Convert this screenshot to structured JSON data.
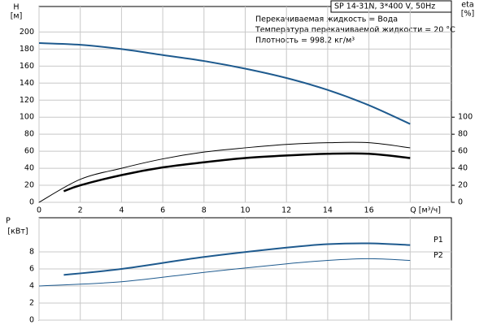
{
  "chart_data": [
    {
      "type": "line",
      "ylabel": "H",
      "yunit": "[м]",
      "y2label": "eta",
      "y2unit": "[%]",
      "model": "SP 14-31N, 3*400 V, 50Hz",
      "notes": [
        "Перекачиваемая жидкость = Вода",
        "Температура перекачиваемой жидкости = 20 °C",
        "Плотность = 998.2 кг/м³"
      ],
      "xlim": [
        0,
        20
      ],
      "xticks": [
        0,
        2,
        4,
        6,
        8,
        10,
        12,
        14,
        16,
        {
          "value": 18,
          "label": "Q [м³/ч]"
        }
      ],
      "ylim": [
        0,
        230
      ],
      "yticks": [
        0,
        20,
        40,
        60,
        80,
        100,
        120,
        140,
        160,
        180,
        200
      ],
      "y2lim": [
        0,
        230
      ],
      "y2ticks": [
        0,
        20,
        40,
        60,
        80,
        100
      ],
      "grid": true,
      "series": [
        {
          "color": "#1e5a8e",
          "width": 2,
          "x": [
            0,
            2,
            4,
            6,
            8,
            10,
            12,
            14,
            16,
            18
          ],
          "values": [
            187,
            185,
            180,
            173,
            166,
            157,
            146,
            132,
            114,
            92
          ]
        },
        {
          "color": "#000000",
          "width": 1,
          "axis": "y2",
          "x": [
            0,
            2,
            4,
            6,
            8,
            10,
            12,
            14,
            16,
            18
          ],
          "values": [
            0,
            27,
            40,
            51,
            59,
            64,
            68,
            70,
            70,
            64
          ]
        },
        {
          "color": "#000000",
          "width": 2.5,
          "axis": "y2",
          "x": [
            1.2,
            2,
            4,
            6,
            8,
            10,
            12,
            14,
            16,
            18
          ],
          "values": [
            13,
            20,
            32,
            41,
            47,
            52,
            55,
            57,
            57,
            52
          ]
        }
      ]
    },
    {
      "type": "line",
      "ylabel": "P",
      "yunit": "[кВт]",
      "xlim": [
        0,
        20
      ],
      "ylim": [
        0,
        12
      ],
      "yticks": [
        0,
        2,
        4,
        6,
        8
      ],
      "grid": true,
      "series": [
        {
          "name": "P1",
          "color": "#1e5a8e",
          "width": 2,
          "x": [
            1.2,
            4,
            8,
            12,
            14,
            16,
            18
          ],
          "values": [
            5.3,
            6.0,
            7.4,
            8.5,
            8.9,
            9.0,
            8.8
          ]
        },
        {
          "name": "P2",
          "color": "#1e5a8e",
          "width": 1,
          "x": [
            0,
            4,
            8,
            12,
            14,
            16,
            18
          ],
          "values": [
            4.0,
            4.5,
            5.6,
            6.6,
            7.0,
            7.2,
            7.0
          ]
        }
      ]
    }
  ]
}
